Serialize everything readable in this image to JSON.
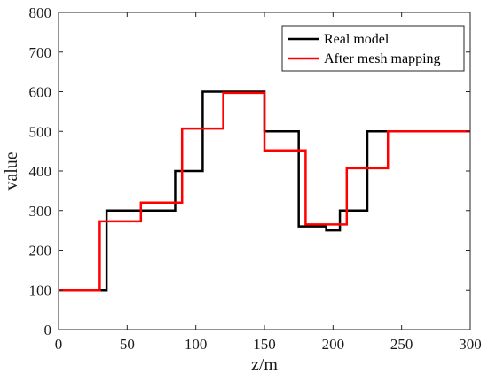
{
  "chart_data": {
    "type": "line",
    "step": true,
    "xlabel": "z/m",
    "ylabel": "value",
    "xlim": [
      0,
      300
    ],
    "ylim": [
      0,
      800
    ],
    "xticks": [
      0,
      50,
      100,
      150,
      200,
      250,
      300
    ],
    "yticks": [
      0,
      100,
      200,
      300,
      400,
      500,
      600,
      700,
      800
    ],
    "grid": false,
    "legend_position": "top-right",
    "series": [
      {
        "name": "Real model",
        "color": "#000000",
        "points": [
          [
            0,
            100
          ],
          [
            35,
            100
          ],
          [
            35,
            300
          ],
          [
            85,
            300
          ],
          [
            85,
            400
          ],
          [
            105,
            400
          ],
          [
            105,
            600
          ],
          [
            150,
            600
          ],
          [
            150,
            500
          ],
          [
            175,
            500
          ],
          [
            175,
            260
          ],
          [
            195,
            260
          ],
          [
            195,
            250
          ],
          [
            205,
            250
          ],
          [
            205,
            300
          ],
          [
            225,
            300
          ],
          [
            225,
            500
          ],
          [
            300,
            500
          ]
        ]
      },
      {
        "name": "After mesh mapping",
        "color": "#ff0000",
        "points": [
          [
            0,
            100
          ],
          [
            30,
            100
          ],
          [
            30,
            273
          ],
          [
            60,
            273
          ],
          [
            60,
            320
          ],
          [
            90,
            320
          ],
          [
            90,
            507
          ],
          [
            120,
            507
          ],
          [
            120,
            597
          ],
          [
            150,
            597
          ],
          [
            150,
            452
          ],
          [
            180,
            452
          ],
          [
            180,
            265
          ],
          [
            210,
            265
          ],
          [
            210,
            407
          ],
          [
            240,
            407
          ],
          [
            240,
            500
          ],
          [
            300,
            500
          ]
        ]
      }
    ]
  }
}
